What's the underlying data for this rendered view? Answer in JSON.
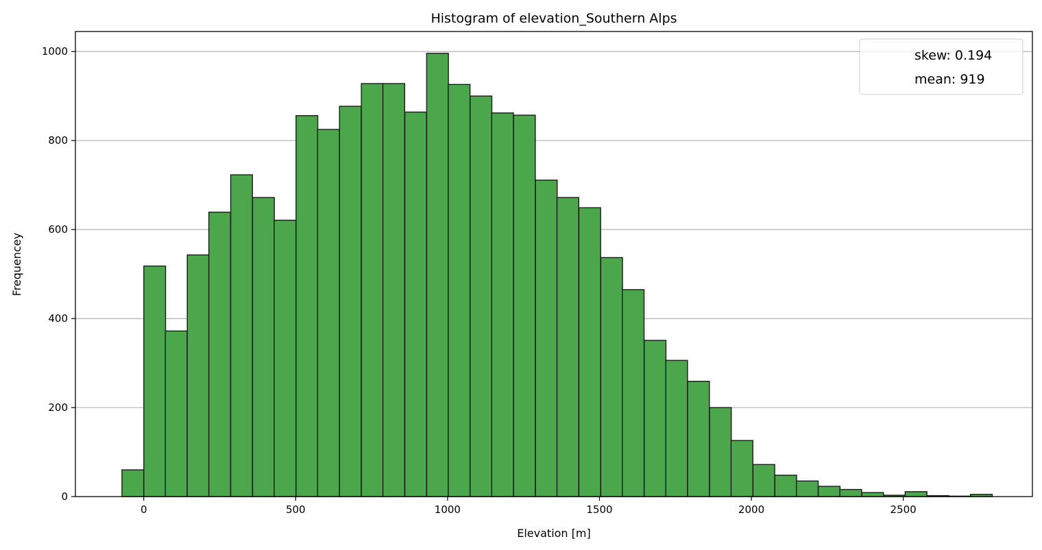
{
  "chart_data": {
    "type": "bar",
    "title": "Histogram of elevation_Southern Alps",
    "xlabel": "Elevation [m]",
    "ylabel": "Frequencey",
    "xlim": [
      -225,
      2925
    ],
    "ylim": [
      0,
      1045
    ],
    "xticks": [
      0,
      500,
      1000,
      1500,
      2000,
      2500
    ],
    "yticks": [
      0,
      200,
      400,
      600,
      800,
      1000
    ],
    "grid": "horizontal",
    "legend_position": "top-right",
    "legend_entries": [
      "skew: 0.194",
      "mean: 919"
    ],
    "bar_color": "#4ca64c",
    "edge_color": "#1a1a1a",
    "bin_width": 71.6,
    "bin_edges_start": -72,
    "bins": [
      {
        "x": -36,
        "value": 60
      },
      {
        "x": 36,
        "value": 518
      },
      {
        "x": 107,
        "value": 372
      },
      {
        "x": 179,
        "value": 543
      },
      {
        "x": 250,
        "value": 639
      },
      {
        "x": 322,
        "value": 723
      },
      {
        "x": 394,
        "value": 672
      },
      {
        "x": 465,
        "value": 621
      },
      {
        "x": 537,
        "value": 856
      },
      {
        "x": 608,
        "value": 825
      },
      {
        "x": 680,
        "value": 877
      },
      {
        "x": 752,
        "value": 928
      },
      {
        "x": 823,
        "value": 928
      },
      {
        "x": 895,
        "value": 864
      },
      {
        "x": 967,
        "value": 996
      },
      {
        "x": 1038,
        "value": 926
      },
      {
        "x": 1110,
        "value": 900
      },
      {
        "x": 1181,
        "value": 862
      },
      {
        "x": 1253,
        "value": 857
      },
      {
        "x": 1325,
        "value": 711
      },
      {
        "x": 1396,
        "value": 672
      },
      {
        "x": 1468,
        "value": 649
      },
      {
        "x": 1540,
        "value": 537
      },
      {
        "x": 1611,
        "value": 465
      },
      {
        "x": 1683,
        "value": 351
      },
      {
        "x": 1754,
        "value": 306
      },
      {
        "x": 1826,
        "value": 259
      },
      {
        "x": 1898,
        "value": 200
      },
      {
        "x": 1969,
        "value": 126
      },
      {
        "x": 2041,
        "value": 72
      },
      {
        "x": 2113,
        "value": 48
      },
      {
        "x": 2184,
        "value": 35
      },
      {
        "x": 2256,
        "value": 23
      },
      {
        "x": 2327,
        "value": 16
      },
      {
        "x": 2399,
        "value": 9
      },
      {
        "x": 2471,
        "value": 3
      },
      {
        "x": 2542,
        "value": 11
      },
      {
        "x": 2614,
        "value": 2
      },
      {
        "x": 2685,
        "value": 1
      },
      {
        "x": 2757,
        "value": 5
      }
    ]
  }
}
